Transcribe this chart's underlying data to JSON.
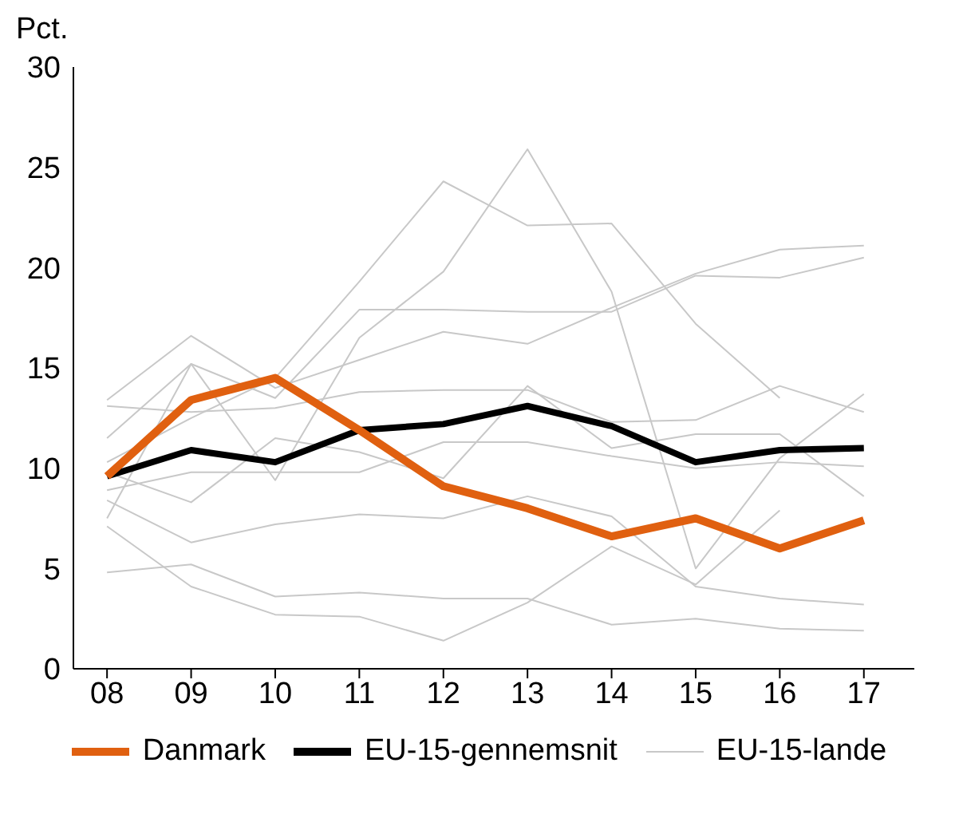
{
  "chart_data": {
    "type": "line",
    "ylabel": "Pct.",
    "categories": [
      "08",
      "09",
      "10",
      "11",
      "12",
      "13",
      "14",
      "15",
      "16",
      "17"
    ],
    "ylim": [
      0,
      30
    ],
    "yticks": [
      0,
      5,
      10,
      15,
      20,
      25,
      30
    ],
    "grid": false,
    "legend": "bottom",
    "marker": "none",
    "line_style": "solid",
    "series": [
      {
        "name": "Danmark",
        "color": "#e06010",
        "values": [
          9.6,
          13.4,
          14.5,
          11.9,
          9.1,
          8.0,
          6.6,
          7.5,
          6.0,
          7.4
        ]
      },
      {
        "name": "EU-15-gennemsnit",
        "color": "#000000",
        "values": [
          9.6,
          10.9,
          10.3,
          11.9,
          12.2,
          13.1,
          12.1,
          10.3,
          10.9,
          11.0
        ]
      },
      {
        "name": "EU-15-lande",
        "color": "#c8c8c8",
        "values": [
          7.5,
          15.2,
          9.4,
          16.5,
          19.8,
          25.9,
          18.8,
          5.0,
          10.5,
          13.7
        ]
      },
      {
        "color": "#c8c8c8",
        "values": [
          10.3,
          12.5,
          14.5,
          19.3,
          24.3,
          22.1,
          22.2,
          17.2,
          13.5,
          null
        ]
      },
      {
        "color": "#c8c8c8",
        "values": [
          11.5,
          15.2,
          13.5,
          17.9,
          17.9,
          17.8,
          17.8,
          19.6,
          19.5,
          20.5
        ]
      },
      {
        "color": "#c8c8c8",
        "values": [
          13.4,
          16.6,
          14.0,
          15.4,
          16.8,
          16.2,
          18.0,
          19.7,
          20.9,
          21.1
        ]
      },
      {
        "color": "#c8c8c8",
        "values": [
          13.1,
          12.8,
          13.0,
          13.8,
          13.9,
          13.9,
          12.3,
          12.4,
          14.1,
          12.8
        ]
      },
      {
        "color": "#c8c8c8",
        "values": [
          8.9,
          9.8,
          9.8,
          9.8,
          11.3,
          11.3,
          10.6,
          10.0,
          10.3,
          10.1
        ]
      },
      {
        "color": "#c8c8c8",
        "values": [
          9.8,
          8.3,
          11.5,
          10.8,
          9.5,
          14.1,
          11.0,
          11.7,
          11.7,
          8.6
        ]
      },
      {
        "color": "#c8c8c8",
        "values": [
          8.4,
          6.3,
          7.2,
          7.7,
          7.5,
          8.6,
          7.6,
          4.1,
          3.5,
          3.2
        ]
      },
      {
        "color": "#c8c8c8",
        "values": [
          4.8,
          5.2,
          3.6,
          3.8,
          3.5,
          3.5,
          2.2,
          2.5,
          2.0,
          1.9
        ]
      },
      {
        "color": "#c8c8c8",
        "values": [
          7.1,
          4.1,
          2.7,
          2.6,
          1.4,
          3.3,
          6.1,
          4.2,
          7.9,
          null
        ]
      }
    ]
  }
}
